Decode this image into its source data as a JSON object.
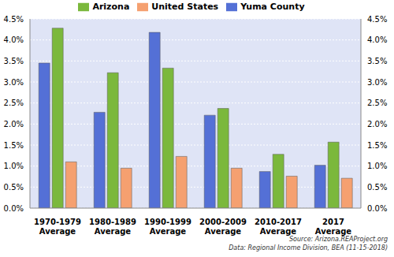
{
  "chart_data": {
    "type": "bar",
    "categories": [
      "1970-1979 Average",
      "1980-1989 Average",
      "1990-1999 Average",
      "2000-2009 Average",
      "2010-2017 Average",
      "2017 Average"
    ],
    "series": [
      {
        "name": "Yuma County",
        "color": "#5470d6",
        "values": [
          3.45,
          2.28,
          4.18,
          2.21,
          0.87,
          1.02
        ]
      },
      {
        "name": "Arizona",
        "color": "#7bb83c",
        "values": [
          4.28,
          3.22,
          3.33,
          2.37,
          1.28,
          1.57
        ]
      },
      {
        "name": "United States",
        "color": "#f5a070",
        "values": [
          1.1,
          0.95,
          1.23,
          0.95,
          0.76,
          0.71
        ]
      }
    ],
    "ylim": [
      0,
      4.5
    ],
    "yticks": [
      {
        "value": 0,
        "label": "0.0%"
      },
      {
        "value": 0.5,
        "label": "0.5%"
      },
      {
        "value": 1,
        "label": "1.0%"
      },
      {
        "value": 1.5,
        "label": "1.5%"
      },
      {
        "value": 2,
        "label": "2.0%"
      },
      {
        "value": 2.5,
        "label": "2.5%"
      },
      {
        "value": 3,
        "label": "3.0%"
      },
      {
        "value": 3.5,
        "label": "3.5%"
      },
      {
        "value": 4,
        "label": "4.0%"
      },
      {
        "value": 4.5,
        "label": "4.5%"
      }
    ],
    "y2lim": [
      0,
      4.5
    ],
    "y2ticks": [
      {
        "value": 0,
        "label": "0.0%"
      },
      {
        "value": 0.5,
        "label": "0.5%"
      },
      {
        "value": 1,
        "label": "1.0%"
      },
      {
        "value": 1.5,
        "label": "1.5%"
      },
      {
        "value": 2,
        "label": "2.0%"
      },
      {
        "value": 2.5,
        "label": "2.5%"
      },
      {
        "value": 3,
        "label": "3.0%"
      },
      {
        "value": 3.5,
        "label": "3.5%"
      },
      {
        "value": 4,
        "label": "4.0%"
      },
      {
        "value": 4.5,
        "label": "4.5%"
      }
    ],
    "grid": true,
    "legend": "top",
    "annotations": [
      "Source: Arizona.REAProject.org",
      "Data: Regional Income Division, BEA (11-15-2018)"
    ]
  }
}
